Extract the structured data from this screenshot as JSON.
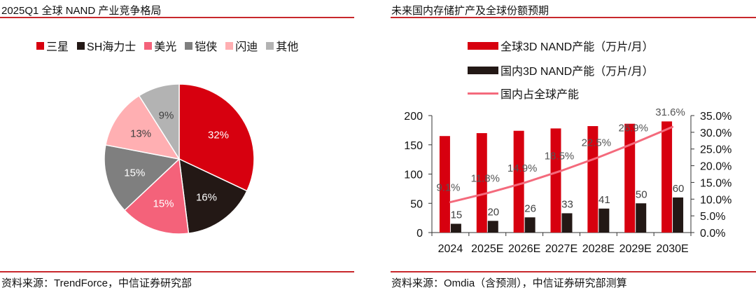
{
  "left": {
    "title": "2025Q1 全球 NAND 产业竞争格局",
    "source": "资料来源：TrendForce，中信证券研究部"
  },
  "right": {
    "title": "未来国内存储扩产及全球份额预期",
    "source": "资料来源：Omdia（含预测），中信证券研究部测算",
    "legend": [
      {
        "label": "全球3D NAND产能（万片/月）",
        "color": "#d7000f",
        "kind": "bar"
      },
      {
        "label": "国内3D NAND产能（万片/月）",
        "color": "#231815",
        "kind": "bar"
      },
      {
        "label": "国内占全球产能",
        "color": "#f46a7c",
        "kind": "line"
      }
    ]
  },
  "chart_data": [
    {
      "type": "pie",
      "title": "2025Q1 全球 NAND 产业竞争格局",
      "legend_position": "top",
      "slices": [
        {
          "label": "三星",
          "value": 32,
          "display": "32%",
          "color": "#d7000f"
        },
        {
          "label": "SH海力士",
          "value": 16,
          "display": "16%",
          "color": "#231815"
        },
        {
          "label": "美光",
          "value": 15,
          "display": "15%",
          "color": "#f4627a"
        },
        {
          "label": "铠侠",
          "value": 15,
          "display": "15%",
          "color": "#7f7f7f"
        },
        {
          "label": "闪迪",
          "value": 13,
          "display": "13%",
          "color": "#ffafb2"
        },
        {
          "label": "其他",
          "value": 9,
          "display": "9%",
          "color": "#b3b3b3"
        }
      ]
    },
    {
      "type": "bar",
      "title": "未来国内存储扩产及全球份额预期",
      "categories": [
        "2024",
        "2025E",
        "2026E",
        "2027E",
        "2028E",
        "2029E",
        "2030E"
      ],
      "series": [
        {
          "name": "全球3D NAND产能（万片/月）",
          "type": "bar",
          "axis": "left",
          "color": "#d7000f",
          "values": [
            165,
            170,
            174,
            178,
            182,
            186,
            190
          ]
        },
        {
          "name": "国内3D NAND产能（万片/月）",
          "type": "bar",
          "axis": "left",
          "color": "#231815",
          "values": [
            15,
            20,
            26,
            33,
            41,
            50,
            60
          ],
          "labels": [
            "15",
            "20",
            "26",
            "33",
            "41",
            "50",
            "60"
          ]
        },
        {
          "name": "国内占全球产能",
          "type": "line",
          "axis": "right",
          "color": "#f46a7c",
          "values": [
            9.1,
            11.8,
            14.9,
            18.5,
            22.5,
            26.9,
            31.6
          ],
          "labels": [
            "9.1%",
            "11.8%",
            "14.9%",
            "18.5%",
            "22.5%",
            "26.9%",
            "31.6%"
          ]
        }
      ],
      "left_axis": {
        "ylim": [
          0,
          200
        ],
        "ticks": [
          "0",
          "50",
          "100",
          "150",
          "200"
        ]
      },
      "right_axis": {
        "ylim": [
          0,
          35
        ],
        "ticks": [
          "0.0%",
          "5.0%",
          "10.0%",
          "15.0%",
          "20.0%",
          "25.0%",
          "30.0%",
          "35.0%"
        ]
      },
      "grid": false,
      "legend_position": "top"
    }
  ]
}
